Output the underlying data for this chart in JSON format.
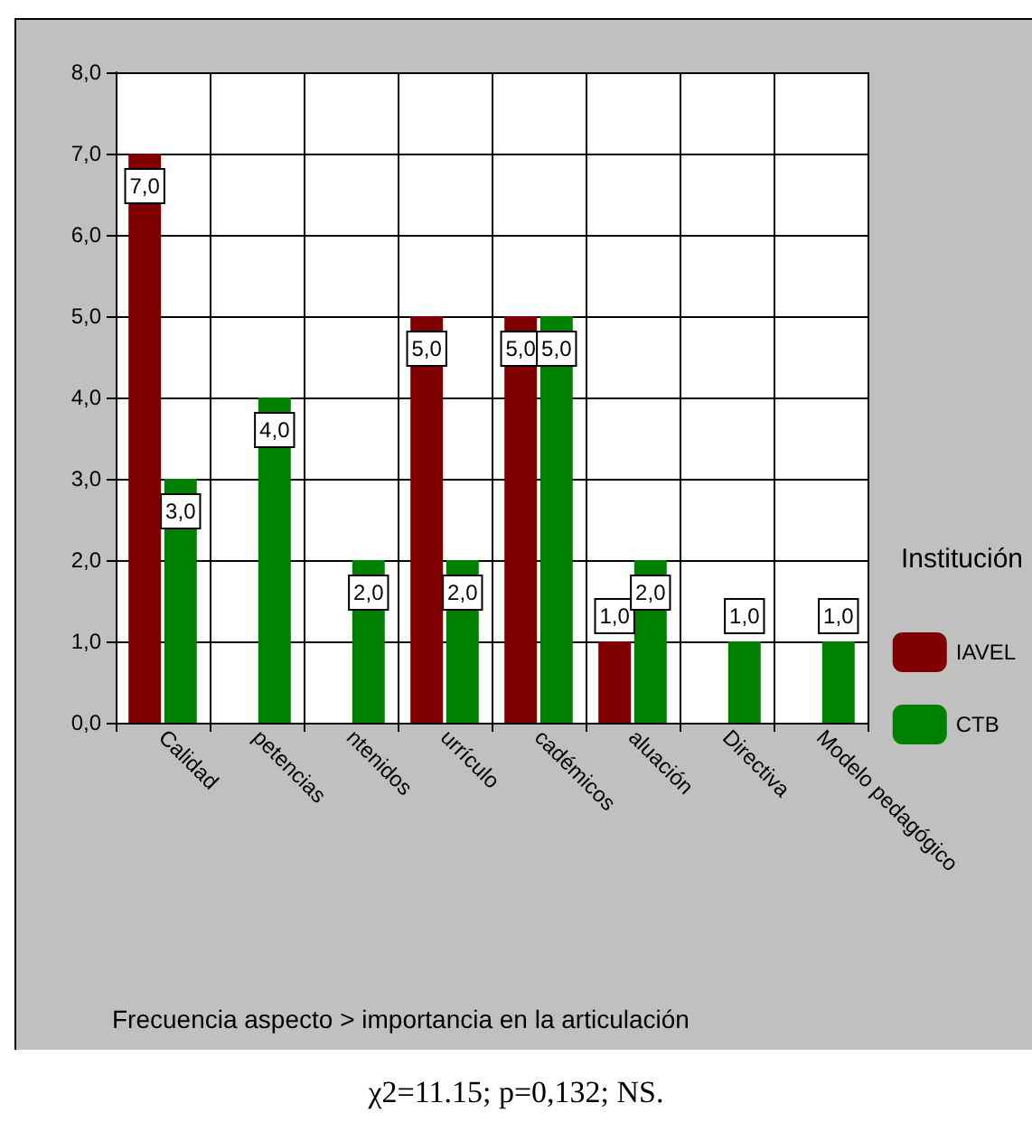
{
  "chart_data": {
    "type": "bar",
    "categories": [
      "Calidad",
      "petencias",
      "ntenidos",
      "urrículo",
      "cadémicos",
      "aluación",
      "Directiva",
      "Modelo pedagógico"
    ],
    "series": [
      {
        "name": "IAVEL",
        "color": "#800000",
        "values": [
          7,
          0,
          0,
          5,
          5,
          1,
          0,
          0
        ],
        "value_labels": [
          "7,0",
          null,
          null,
          "5,0",
          "5,0",
          "1,0",
          null,
          null
        ]
      },
      {
        "name": "CTB",
        "color": "#008000",
        "values": [
          3,
          4,
          2,
          2,
          5,
          2,
          1,
          1
        ],
        "value_labels": [
          "3,0",
          "4,0",
          "2,0",
          "2,0",
          "5,0",
          "2,0",
          "1,0",
          "1,0"
        ]
      }
    ],
    "ylim": [
      0,
      8
    ],
    "yticks": [
      {
        "value": 0,
        "label": "0,0"
      },
      {
        "value": 1,
        "label": "1,0"
      },
      {
        "value": 2,
        "label": "2,0"
      },
      {
        "value": 3,
        "label": "3,0"
      },
      {
        "value": 4,
        "label": "4,0"
      },
      {
        "value": 5,
        "label": "5,0"
      },
      {
        "value": 6,
        "label": "6,0"
      },
      {
        "value": 7,
        "label": "7,0"
      },
      {
        "value": 8,
        "label": "8,0"
      }
    ],
    "grid": true,
    "legend": "right",
    "legend_title": "Institución",
    "annotations": [
      "Frecuencia aspecto > importancia en la articulación",
      "χ2=11.15; p=0,132; NS."
    ]
  }
}
